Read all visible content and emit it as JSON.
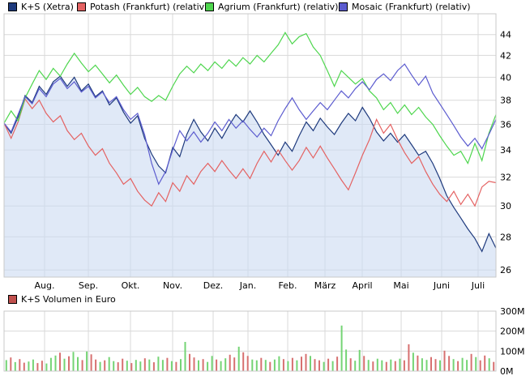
{
  "accent_colors": {
    "grid": "#d9d9d9",
    "plot_border": "#c9c9c9",
    "background": "#ffffff"
  },
  "chart_data": [
    {
      "type": "line",
      "title": "",
      "x_ticks": {
        "labels": [
          "Aug.",
          "Sep.",
          "Okt.",
          "Nov.",
          "Dez.",
          "Jan.",
          "Feb.",
          "März",
          "April",
          "Mai",
          "Juni",
          "Juli"
        ],
        "fractions": [
          0.0824,
          0.1714,
          0.257,
          0.3427,
          0.4251,
          0.4959,
          0.5766,
          0.6524,
          0.7282,
          0.8073,
          0.8896,
          0.9637
        ]
      },
      "y_axis": {
        "scale": "log",
        "min": 25.59,
        "max": 46.1,
        "ticks": [
          44,
          42,
          40,
          38,
          36,
          34,
          32,
          30,
          28,
          26
        ]
      },
      "legend_position": "top",
      "grid": true,
      "series": [
        {
          "name": "K+S (Xetra)",
          "color": "#1e3a7d",
          "fill": "rgba(203,219,242,0.6)",
          "values": [
            36.1,
            35.3,
            36.6,
            38.4,
            37.8,
            39.2,
            38.5,
            39.6,
            40.1,
            39.2,
            40.0,
            38.8,
            39.4,
            38.3,
            38.8,
            37.6,
            38.2,
            37.0,
            36.1,
            36.7,
            34.9,
            33.7,
            32.8,
            32.3,
            34.2,
            33.5,
            35.2,
            36.4,
            35.4,
            34.7,
            35.7,
            34.9,
            35.9,
            36.8,
            36.2,
            37.1,
            36.2,
            35.2,
            34.4,
            33.6,
            34.6,
            33.9,
            35.1,
            36.2,
            35.5,
            36.5,
            35.8,
            35.2,
            36.1,
            36.9,
            36.3,
            37.4,
            36.5,
            35.4,
            34.7,
            35.3,
            34.6,
            35.2,
            34.4,
            33.6,
            33.9,
            33.0,
            31.9,
            30.7,
            29.9,
            29.2,
            28.5,
            27.9,
            27.1,
            28.2,
            27.3
          ]
        },
        {
          "name": "Potash (Frankfurt) (relativ)",
          "color": "#e46262",
          "values": [
            36.1,
            34.9,
            36.2,
            38.1,
            37.3,
            38.0,
            36.9,
            36.2,
            36.7,
            35.5,
            34.8,
            35.3,
            34.3,
            33.6,
            34.1,
            33.0,
            32.3,
            31.5,
            31.9,
            31.0,
            30.4,
            30.0,
            30.9,
            30.3,
            31.6,
            31.0,
            32.1,
            31.5,
            32.4,
            33.0,
            32.4,
            33.2,
            32.5,
            31.9,
            32.6,
            31.9,
            33.0,
            33.9,
            33.1,
            34.0,
            33.2,
            32.5,
            33.2,
            34.2,
            33.4,
            34.3,
            33.4,
            32.6,
            31.8,
            31.1,
            32.3,
            33.6,
            34.8,
            36.4,
            35.3,
            36.0,
            34.8,
            33.8,
            33.0,
            33.5,
            32.4,
            31.5,
            30.8,
            30.3,
            31.0,
            30.1,
            30.8,
            30.0,
            31.3,
            31.7,
            31.6
          ]
        },
        {
          "name": "Agrium (Frankfurt) (relativ)",
          "color": "#4ed64e",
          "values": [
            36.1,
            37.1,
            36.3,
            38.2,
            39.4,
            40.6,
            39.8,
            40.8,
            40.1,
            41.2,
            42.2,
            41.3,
            40.5,
            41.1,
            40.3,
            39.5,
            40.2,
            39.3,
            38.5,
            39.1,
            38.3,
            37.9,
            38.4,
            38.0,
            39.2,
            40.3,
            41.0,
            40.4,
            41.2,
            40.6,
            41.4,
            40.8,
            41.6,
            41.0,
            41.8,
            41.2,
            42.0,
            41.4,
            42.2,
            43.0,
            44.2,
            43.1,
            43.8,
            44.1,
            42.8,
            42.0,
            40.6,
            39.2,
            40.6,
            40.0,
            39.4,
            39.9,
            38.8,
            38.2,
            37.2,
            37.8,
            36.9,
            37.6,
            36.8,
            37.4,
            36.6,
            36.0,
            35.1,
            34.3,
            33.6,
            33.9,
            33.0,
            34.5,
            33.2,
            35.3,
            36.8
          ]
        },
        {
          "name": "Mosaic (Frankfurt) (relativ)",
          "color": "#5c5ccf",
          "values": [
            36.1,
            35.4,
            36.8,
            38.3,
            37.7,
            39.0,
            38.3,
            39.4,
            39.9,
            39.0,
            39.6,
            38.7,
            39.2,
            38.2,
            38.7,
            37.8,
            38.3,
            37.2,
            36.4,
            36.9,
            35.2,
            33.0,
            31.5,
            32.4,
            34.0,
            35.5,
            34.7,
            35.4,
            34.6,
            35.3,
            36.2,
            35.5,
            36.4,
            35.7,
            36.3,
            35.6,
            35.0,
            35.7,
            35.1,
            36.3,
            37.3,
            38.2,
            37.2,
            36.4,
            37.1,
            37.8,
            37.2,
            38.0,
            38.8,
            38.2,
            39.0,
            39.6,
            38.9,
            39.8,
            40.3,
            39.7,
            40.6,
            41.2,
            40.2,
            39.3,
            40.1,
            38.6,
            37.7,
            36.8,
            35.9,
            35.0,
            34.3,
            34.9,
            34.1,
            35.2,
            36.4
          ]
        }
      ]
    },
    {
      "type": "bar",
      "title": "K+S Volumen in Euro",
      "legend_color": "#c0504d",
      "unit": "M",
      "y_axis": {
        "min": 0,
        "max": 300,
        "ticks": [
          300,
          200,
          100,
          0
        ]
      },
      "up_color": "#74d474",
      "down_color": "#d77070",
      "values": [
        55,
        68,
        45,
        60,
        42,
        48,
        58,
        40,
        52,
        38,
        66,
        78,
        92,
        62,
        74,
        96,
        70,
        55,
        98,
        84,
        58,
        46,
        54,
        70,
        50,
        44,
        62,
        52,
        40,
        56,
        48,
        64,
        58,
        44,
        72,
        56,
        66,
        50,
        46,
        60,
        146,
        86,
        68,
        54,
        60,
        46,
        76,
        58,
        50,
        64,
        82,
        68,
        122,
        94,
        76,
        58,
        54,
        66,
        56,
        46,
        58,
        74,
        60,
        50,
        66,
        54,
        72,
        86,
        76,
        60,
        54,
        46,
        62,
        50,
        72,
        228,
        108,
        64,
        52,
        106,
        76,
        56,
        48,
        62,
        54,
        46,
        58,
        50,
        62,
        54,
        134,
        92,
        78,
        64,
        56,
        70,
        60,
        54,
        102,
        76,
        60,
        50,
        66,
        56,
        86,
        70,
        54,
        78,
        64,
        46
      ],
      "directions": "ududduudduuududuududduduuddudUududuududuudduduuduuddudduududuudududduddududuuduududuudududduduuddudduduududdud"
    }
  ]
}
